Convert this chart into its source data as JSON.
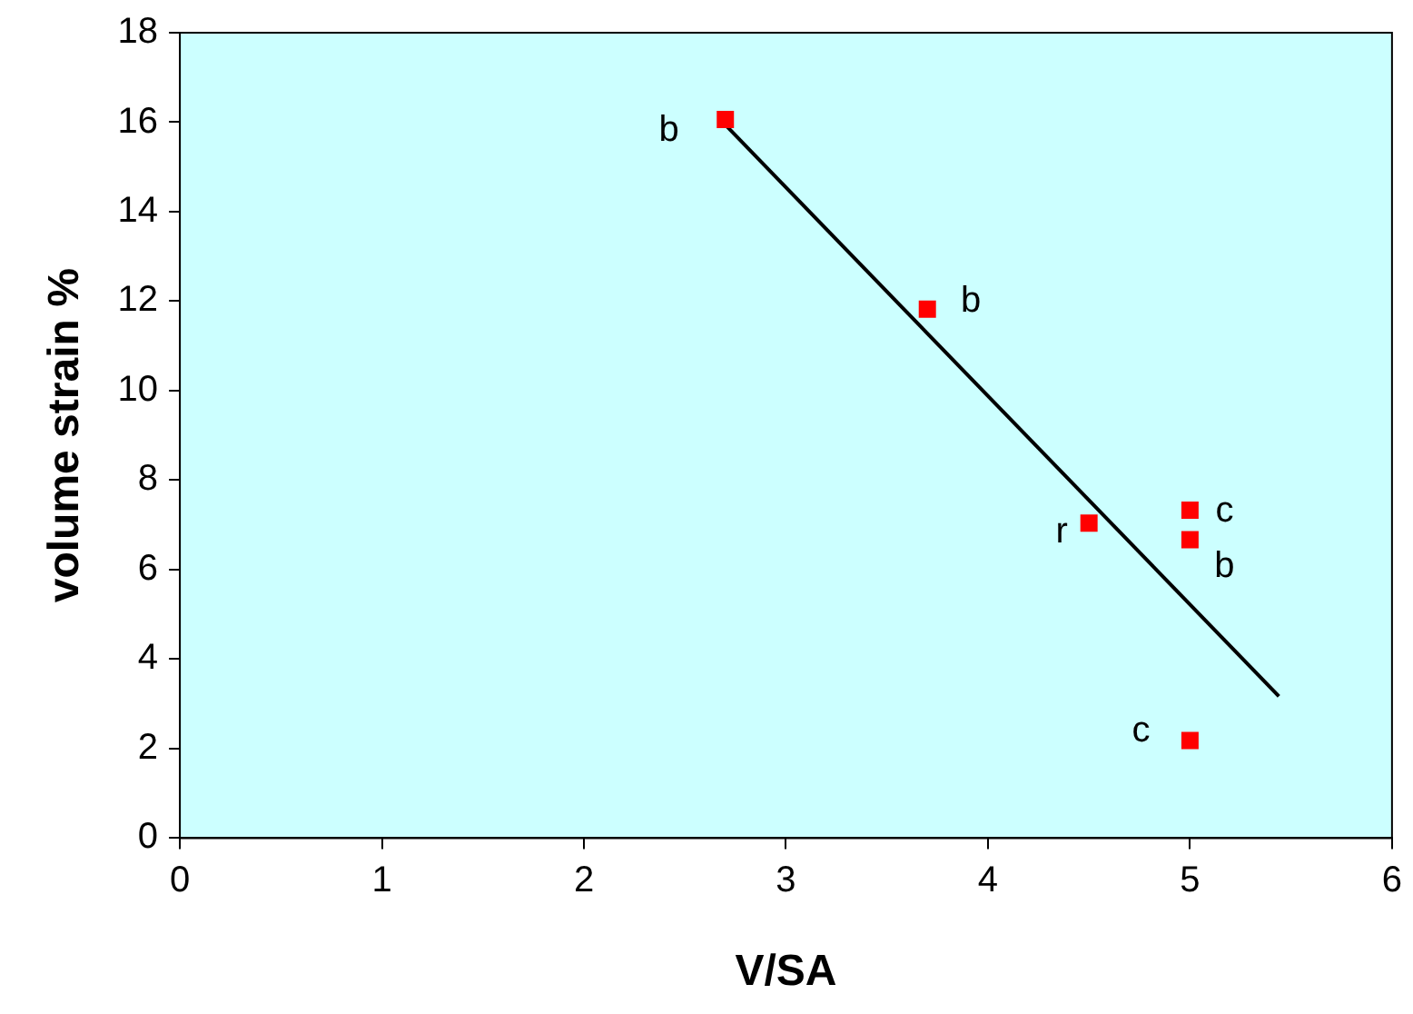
{
  "chart_data": {
    "type": "scatter",
    "xlabel": "V/SA",
    "ylabel": "volume strain %",
    "xlim": [
      0,
      6
    ],
    "xticks": [
      0,
      1,
      2,
      3,
      4,
      5,
      6
    ],
    "ylim": [
      0,
      18
    ],
    "yticks": [
      0,
      2,
      4,
      6,
      8,
      10,
      12,
      14,
      16,
      18
    ],
    "grid": false,
    "legend": false,
    "series": [
      {
        "marker": "square",
        "color": "#ff0000",
        "x": [
          2.7,
          3.7,
          4.5,
          5,
          5,
          5
        ],
        "values": [
          16.06,
          11.82,
          7.04,
          7.33,
          6.67,
          2.18
        ]
      },
      {
        "type": "line",
        "marker": "none",
        "color": "#000000",
        "x": [
          2.7,
          5.44
        ],
        "values": [
          15.94,
          3.17
        ]
      }
    ],
    "annotations": [
      {
        "text": "b",
        "x": 2.7,
        "y": 16.06
      },
      {
        "text": "b",
        "x": 3.7,
        "y": 11.82
      },
      {
        "text": "r",
        "x": 4.5,
        "y": 7.04
      },
      {
        "text": "c",
        "x": 5,
        "y": 7.33
      },
      {
        "text": "b",
        "x": 5,
        "y": 6.67
      },
      {
        "text": "c",
        "x": 5,
        "y": 2.18
      }
    ]
  }
}
